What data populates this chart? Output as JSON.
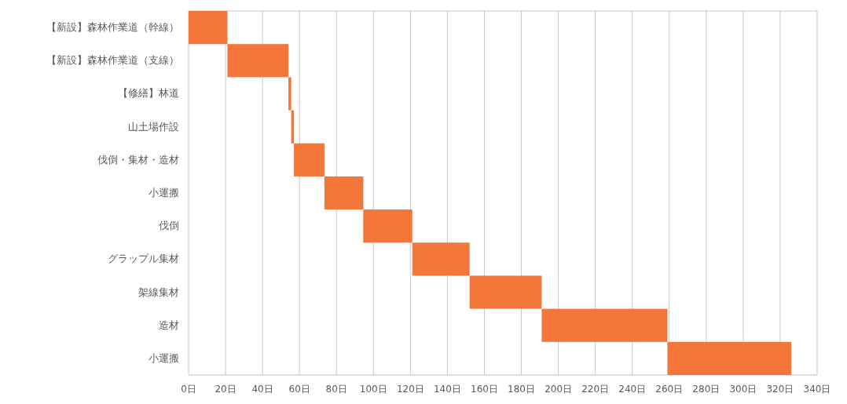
{
  "chart_data": {
    "type": "bar",
    "orientation": "horizontal",
    "color": "#f47639",
    "categories": [
      "【新設】森林作業道（幹線）",
      "【新設】森林作業道（支線）",
      "【修繕】林道",
      "山土場作設",
      "伐倒・集材・造材",
      "小運搬",
      "伐倒",
      "グラップル集材",
      "架線集材",
      "造材",
      "小運搬"
    ],
    "base": [
      0,
      21,
      54,
      55.5,
      57,
      73.5,
      94.5,
      121,
      152,
      191,
      259
    ],
    "values": [
      21,
      33,
      1.5,
      1.5,
      16.5,
      21,
      26.5,
      31,
      39,
      68,
      67
    ],
    "xlim": [
      0,
      340
    ],
    "xticks": [
      {
        "value": 0,
        "label": "0日"
      },
      {
        "value": 20,
        "label": "20日"
      },
      {
        "value": 40,
        "label": "40日"
      },
      {
        "value": 60,
        "label": "60日"
      },
      {
        "value": 80,
        "label": "80日"
      },
      {
        "value": 100,
        "label": "100日"
      },
      {
        "value": 120,
        "label": "120日"
      },
      {
        "value": 140,
        "label": "140日"
      },
      {
        "value": 160,
        "label": "160日"
      },
      {
        "value": 180,
        "label": "180日"
      },
      {
        "value": 200,
        "label": "200日"
      },
      {
        "value": 220,
        "label": "220日"
      },
      {
        "value": 240,
        "label": "240日"
      },
      {
        "value": 260,
        "label": "260日"
      },
      {
        "value": 280,
        "label": "280日"
      },
      {
        "value": 300,
        "label": "300日"
      },
      {
        "value": 320,
        "label": "320日"
      },
      {
        "value": 340,
        "label": "340日"
      }
    ],
    "grid": "x"
  }
}
